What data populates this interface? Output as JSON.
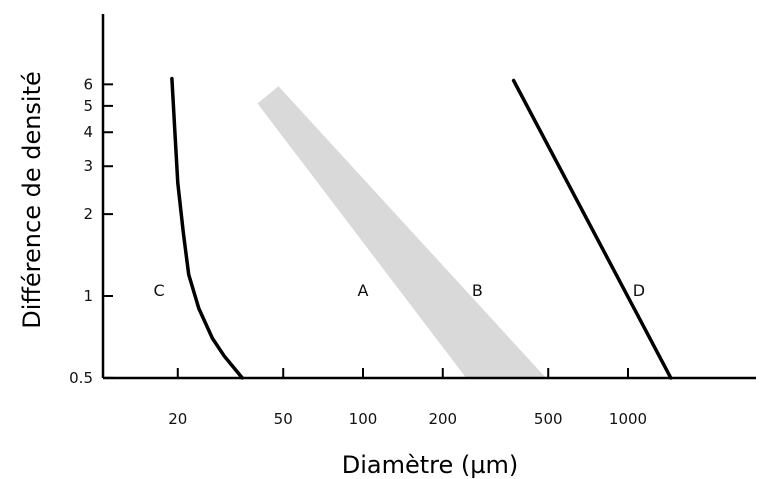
{
  "chart_data": {
    "type": "line",
    "xlabel": "Diamètre (µm)",
    "ylabel": "Différence de densité",
    "x_scale": "log",
    "y_scale": "log",
    "xlim": [
      10,
      3000
    ],
    "ylim": [
      0.5,
      12
    ],
    "x_ticks": [
      {
        "value": 20,
        "label": "20"
      },
      {
        "value": 50,
        "label": "50"
      },
      {
        "value": 100,
        "label": "100"
      },
      {
        "value": 200,
        "label": "200"
      },
      {
        "value": 500,
        "label": "500"
      },
      {
        "value": 1000,
        "label": "1000"
      }
    ],
    "y_ticks": [
      {
        "value": 0.5,
        "label": "0.5"
      },
      {
        "value": 1,
        "label": "1"
      },
      {
        "value": 2,
        "label": "2"
      },
      {
        "value": 3,
        "label": "3"
      },
      {
        "value": 4,
        "label": "4"
      },
      {
        "value": 5,
        "label": "5"
      },
      {
        "value": 6,
        "label": "6"
      }
    ],
    "series": [
      {
        "label": "C",
        "color": "#000000",
        "points": [
          [
            19,
            6.3
          ],
          [
            19.5,
            4
          ],
          [
            20,
            2.6
          ],
          [
            21,
            1.7
          ],
          [
            22,
            1.2
          ],
          [
            24,
            0.9
          ],
          [
            27,
            0.7
          ],
          [
            30,
            0.6
          ],
          [
            35,
            0.5
          ]
        ]
      },
      {
        "label": "D",
        "color": "#000000",
        "points": [
          [
            370,
            6.2
          ],
          [
            1450,
            0.5
          ]
        ]
      }
    ],
    "band": {
      "label_left": "A",
      "label_right": "B",
      "color": "#d9d9d9",
      "polygon": [
        [
          40,
          5.1
        ],
        [
          48,
          5.9
        ],
        [
          490,
          0.5
        ],
        [
          245,
          0.5
        ]
      ]
    },
    "region_labels": [
      {
        "text": "C",
        "x": 17,
        "y": 1.05
      },
      {
        "text": "A",
        "x": 100,
        "y": 1.05
      },
      {
        "text": "B",
        "x": 270,
        "y": 1.05
      },
      {
        "text": "D",
        "x": 1100,
        "y": 1.05
      }
    ]
  }
}
